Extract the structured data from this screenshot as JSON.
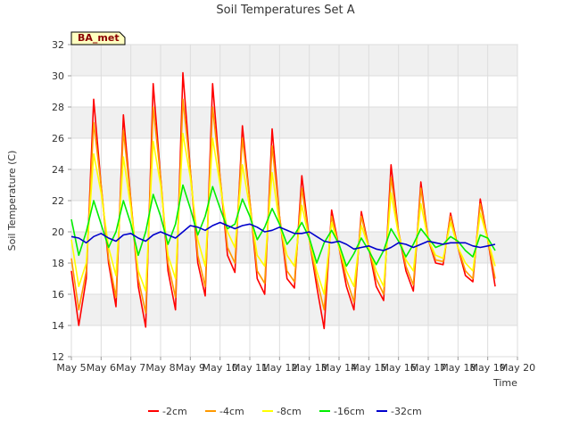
{
  "chart_data": {
    "type": "line",
    "title": "Soil Temperatures Set A",
    "xlabel": "Time",
    "ylabel": "Soil Temperature (C)",
    "badge": "BA_met",
    "xlim": [
      5,
      20
    ],
    "ylim": [
      12,
      32
    ],
    "x_ticks": [
      5,
      6,
      7,
      8,
      9,
      10,
      11,
      12,
      13,
      14,
      15,
      16,
      17,
      18,
      19,
      20
    ],
    "x_tick_labels": [
      "May 5",
      "May 6",
      "May 7",
      "May 8",
      "May 9",
      "May 10",
      "May 11",
      "May 12",
      "May 13",
      "May 14",
      "May 15",
      "May 16",
      "May 17",
      "May 18",
      "May 19",
      "May 20"
    ],
    "y_ticks": [
      12,
      14,
      16,
      18,
      20,
      22,
      24,
      26,
      28,
      30,
      32
    ],
    "y_tick_labels": [
      "12",
      "14",
      "16",
      "18",
      "20",
      "22",
      "24",
      "26",
      "28",
      "30",
      "32"
    ],
    "grid": true,
    "legend_position": "bottom",
    "x": [
      5.0,
      5.25,
      5.5,
      5.75,
      6.0,
      6.25,
      6.5,
      6.75,
      7.0,
      7.25,
      7.5,
      7.75,
      8.0,
      8.25,
      8.5,
      8.75,
      9.0,
      9.25,
      9.5,
      9.75,
      10.0,
      10.25,
      10.5,
      10.75,
      11.0,
      11.25,
      11.5,
      11.75,
      12.0,
      12.25,
      12.5,
      12.75,
      13.0,
      13.25,
      13.5,
      13.75,
      14.0,
      14.25,
      14.5,
      14.75,
      15.0,
      15.25,
      15.5,
      15.75,
      16.0,
      16.25,
      16.5,
      16.75,
      17.0,
      17.25,
      17.5,
      17.75,
      18.0,
      18.25,
      18.5,
      18.75,
      19.0,
      19.25
    ],
    "series": [
      {
        "name": "-2cm",
        "color": "#ff0000",
        "values": [
          17.5,
          14.0,
          17.0,
          28.5,
          23.0,
          18.0,
          15.2,
          27.5,
          22.0,
          16.5,
          13.9,
          29.5,
          23.5,
          17.5,
          15.0,
          30.2,
          24.0,
          18.0,
          15.9,
          29.5,
          23.5,
          18.5,
          17.4,
          26.8,
          22.0,
          17.0,
          16.0,
          26.6,
          21.0,
          17.0,
          16.4,
          23.6,
          19.5,
          16.5,
          13.8,
          21.4,
          19.0,
          16.5,
          15.0,
          21.3,
          19.0,
          16.5,
          15.6,
          24.3,
          20.0,
          17.5,
          16.2,
          23.2,
          19.5,
          18.0,
          17.9,
          21.2,
          19.0,
          17.2,
          16.8,
          22.1,
          19.5,
          16.5
        ]
      },
      {
        "name": "-4cm",
        "color": "#ff9900",
        "values": [
          18.3,
          15.0,
          17.5,
          27.0,
          23.0,
          18.3,
          15.8,
          26.5,
          22.0,
          17.0,
          14.8,
          28.0,
          23.5,
          18.0,
          15.8,
          28.5,
          24.0,
          18.5,
          16.5,
          28.0,
          23.5,
          19.0,
          18.0,
          26.0,
          22.0,
          17.5,
          16.7,
          25.5,
          21.0,
          17.5,
          16.8,
          22.8,
          19.5,
          17.0,
          15.0,
          21.0,
          19.0,
          17.0,
          15.5,
          21.0,
          19.0,
          17.0,
          16.0,
          23.5,
          20.0,
          17.8,
          16.6,
          22.8,
          19.5,
          18.2,
          18.1,
          21.0,
          19.0,
          17.5,
          17.0,
          21.8,
          19.5,
          17.0
        ]
      },
      {
        "name": "-8cm",
        "color": "#ffff00",
        "values": [
          19.5,
          16.5,
          18.0,
          25.0,
          22.5,
          19.0,
          17.2,
          24.8,
          21.5,
          17.5,
          16.2,
          25.8,
          23.0,
          18.5,
          17.0,
          26.3,
          23.5,
          19.5,
          17.8,
          26.0,
          23.0,
          20.0,
          19.0,
          24.3,
          21.5,
          18.5,
          17.8,
          23.8,
          20.5,
          18.5,
          17.8,
          21.7,
          19.5,
          17.5,
          16.0,
          20.6,
          19.0,
          17.5,
          16.5,
          20.4,
          19.0,
          17.5,
          16.5,
          22.5,
          19.8,
          18.2,
          17.5,
          21.8,
          19.5,
          18.5,
          18.3,
          20.6,
          19.0,
          18.0,
          17.5,
          21.2,
          19.5,
          17.8
        ]
      },
      {
        "name": "-16cm",
        "color": "#00ee00",
        "values": [
          20.8,
          18.5,
          20.0,
          22.0,
          20.5,
          19.0,
          20.0,
          22.0,
          20.5,
          18.5,
          20.0,
          22.4,
          21.0,
          19.2,
          20.5,
          23.0,
          21.5,
          19.8,
          21.0,
          22.9,
          21.5,
          20.2,
          20.5,
          22.1,
          21.0,
          19.5,
          20.3,
          21.5,
          20.5,
          19.2,
          19.8,
          20.6,
          19.6,
          18.0,
          19.3,
          20.1,
          19.2,
          17.8,
          18.6,
          19.6,
          18.8,
          17.9,
          18.8,
          20.2,
          19.4,
          18.4,
          19.2,
          20.2,
          19.6,
          19.0,
          19.2,
          19.7,
          19.4,
          18.8,
          18.4,
          19.8,
          19.6,
          18.8
        ]
      },
      {
        "name": "-32cm",
        "color": "#0000cc",
        "values": [
          19.7,
          19.6,
          19.3,
          19.7,
          19.9,
          19.6,
          19.4,
          19.8,
          19.9,
          19.6,
          19.4,
          19.8,
          20.0,
          19.8,
          19.6,
          20.0,
          20.4,
          20.3,
          20.1,
          20.4,
          20.6,
          20.4,
          20.2,
          20.4,
          20.5,
          20.3,
          20.0,
          20.1,
          20.3,
          20.1,
          19.9,
          19.9,
          20.0,
          19.7,
          19.4,
          19.3,
          19.4,
          19.2,
          18.9,
          19.0,
          19.1,
          18.9,
          18.8,
          19.0,
          19.3,
          19.2,
          19.0,
          19.2,
          19.4,
          19.3,
          19.2,
          19.3,
          19.3,
          19.3,
          19.1,
          19.0,
          19.1,
          19.2
        ]
      }
    ]
  }
}
